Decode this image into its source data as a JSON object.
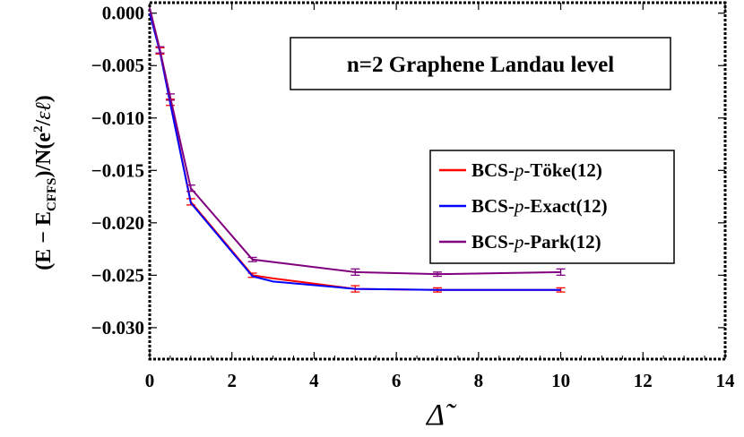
{
  "chart_data": {
    "type": "line",
    "title": "n=2 Graphene Landau level",
    "xlabel": "Δ̃",
    "ylabel": "(E − E_CFFS)/N(e²/εℓ)",
    "xlim": [
      0,
      14
    ],
    "ylim": [
      -0.033,
      0.001
    ],
    "x_ticks": [
      "0",
      "2",
      "4",
      "6",
      "8",
      "10",
      "12",
      "14"
    ],
    "y_ticks": [
      "0.000",
      "−0.005",
      "−0.010",
      "−0.015",
      "−0.020",
      "−0.025",
      "−0.030"
    ],
    "legend_position": "right",
    "series": [
      {
        "name": "BCS-p-Töke(12)",
        "color": "#ff0000",
        "x": [
          0,
          0.25,
          0.5,
          1.0,
          2.5,
          3.0,
          5.0,
          7.0,
          10.0
        ],
        "y": [
          0.0,
          -0.0036,
          -0.0085,
          -0.018,
          -0.025,
          -0.0253,
          -0.0263,
          -0.0264,
          -0.0264
        ],
        "err": [
          0.0,
          0.0003,
          0.0003,
          0.0003,
          0.0002,
          0.0,
          0.0003,
          0.0002,
          0.0002
        ]
      },
      {
        "name": "BCS-p-Exact(12)",
        "color": "#0000ff",
        "x": [
          0,
          0.25,
          0.5,
          1.0,
          2.5,
          3.0,
          5.0,
          7.0,
          10.0
        ],
        "y": [
          0.0,
          -0.0037,
          -0.0086,
          -0.0181,
          -0.0251,
          -0.0256,
          -0.0263,
          -0.0264,
          -0.0264
        ],
        "err": []
      },
      {
        "name": "BCS-p-Park(12)",
        "color": "#800080",
        "x": [
          0,
          0.25,
          0.5,
          1.0,
          2.5,
          5.0,
          7.0,
          10.0
        ],
        "y": [
          0.0005,
          -0.0035,
          -0.008,
          -0.0167,
          -0.0235,
          -0.0247,
          -0.0249,
          -0.0247
        ],
        "err": [
          0.0,
          0.0003,
          0.0003,
          0.0003,
          0.0002,
          0.0003,
          0.0002,
          0.0003
        ]
      }
    ],
    "legend_entries": [
      {
        "prefix": "BCS-",
        "italic": "p",
        "suffix": "-Töke(12)"
      },
      {
        "prefix": "BCS-",
        "italic": "p",
        "suffix": "-Exact(12)"
      },
      {
        "prefix": "BCS-",
        "italic": "p",
        "suffix": "-Park(12)"
      }
    ]
  }
}
